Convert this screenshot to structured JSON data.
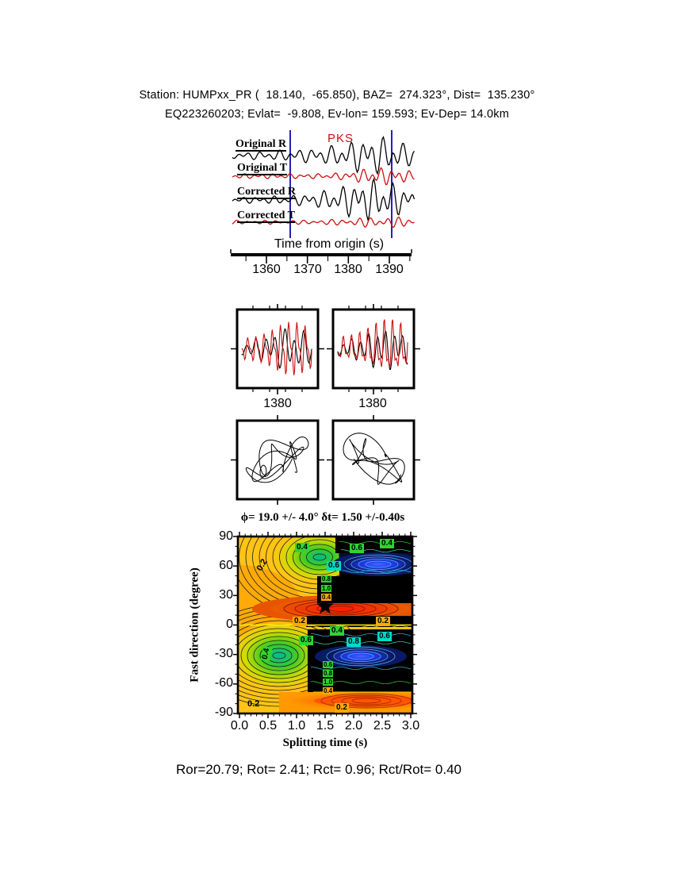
{
  "header": {
    "line1": "Station: HUMPxx_PR (  18.140,  -65.850), BAZ=  274.323°, Dist=  135.230°",
    "line2": "EQ223260203; Evlat=  -9.808, Ev-lon= 159.593; Ev-Dep= 14.0km"
  },
  "traces": {
    "phase_label": "PKS",
    "labels": [
      "Original R",
      "Original T",
      "Corrected R",
      "Corrected T"
    ],
    "axis_label": "Time from origin (s)",
    "ticks": [
      "1360",
      "1370",
      "1380",
      "1390"
    ]
  },
  "zoom_panels": {
    "ticks": [
      "1380",
      "1380"
    ]
  },
  "contour": {
    "title": "ϕ= 19.0 +/- 4.0° δt= 1.50 +/-0.40s",
    "ylabel": "Fast direction (degree)",
    "xlabel": "Splitting time (s)",
    "y_ticks": [
      "90",
      "60",
      "30",
      "0",
      "-30",
      "-60",
      "-90"
    ],
    "x_ticks": [
      "0.0",
      "0.5",
      "1.0",
      "1.5",
      "2.0",
      "2.5",
      "3.0"
    ],
    "chips": [
      "0.4",
      "0.6",
      "0.4",
      "0.2",
      "0.6",
      "0.8",
      "1.0",
      "0.4",
      "0.2",
      "0.2",
      "0.4",
      "0.6",
      "0.8",
      "0.6",
      "0.4",
      "0.6",
      "0.8",
      "1.0",
      "0.4",
      "0.2",
      "0.2"
    ]
  },
  "footer": {
    "stats": "Ror=20.79; Rot= 2.41; Rct= 0.96; Rct/Rot= 0.40"
  },
  "colors": {
    "trace_red": "#cc1111",
    "window_blue": "#2222bb",
    "contour_yellow": "#ffc414",
    "contour_orange": "#ff8800",
    "contour_red": "#ff1a00",
    "contour_green": "#2ed52e",
    "contour_teal": "#00d9c8",
    "contour_blue": "#2747ff"
  },
  "chart_data": [
    {
      "type": "line",
      "title": "Radial/transverse seismograms before and after splitting correction",
      "xlabel": "Time from origin (s)",
      "x_ticks": [
        1360,
        1370,
        1380,
        1390
      ],
      "x_range": [
        1352,
        1396
      ],
      "series": [
        {
          "name": "Original R",
          "color": "black"
        },
        {
          "name": "Original T",
          "color": "red"
        },
        {
          "name": "Corrected R",
          "color": "black"
        },
        {
          "name": "Corrected T",
          "color": "red"
        }
      ],
      "phase_annotation": "PKS",
      "window_lines_s": [
        1365.8,
        1390.3
      ]
    },
    {
      "type": "line",
      "title": "Windowed fast/slow waveform pairs (uncorrected, corrected)",
      "panels": 2,
      "x_tick_label": 1380,
      "series_per_panel": [
        "black trace",
        "red trace"
      ]
    },
    {
      "type": "line",
      "title": "Particle motion before and after correction",
      "panels": 2
    },
    {
      "type": "heatmap",
      "title": "Splitting parameter error surface",
      "xlabel": "Splitting time (s)",
      "ylabel": "Fast direction (degree)",
      "x_range": [
        0.0,
        3.0
      ],
      "y_range": [
        -90,
        90
      ],
      "x_ticks": [
        0.0,
        0.5,
        1.0,
        1.5,
        2.0,
        2.5,
        3.0
      ],
      "y_ticks": [
        90,
        60,
        30,
        0,
        -30,
        -60,
        -90
      ],
      "contour_levels": [
        0.2,
        0.4,
        0.6,
        0.8,
        1.0
      ],
      "best_fit": {
        "phi_deg": 19.0,
        "phi_err_deg": 4.0,
        "dt_s": 1.5,
        "dt_err_s": 0.4
      },
      "star_marker": {
        "x": 1.5,
        "y": 19
      },
      "legend_position": "none",
      "grid": false
    },
    {
      "type": "table",
      "title": "Splitting quality statistics",
      "values": {
        "Ror": 20.79,
        "Rot": 2.41,
        "Rct": 0.96,
        "Rct/Rot": 0.4
      }
    }
  ]
}
